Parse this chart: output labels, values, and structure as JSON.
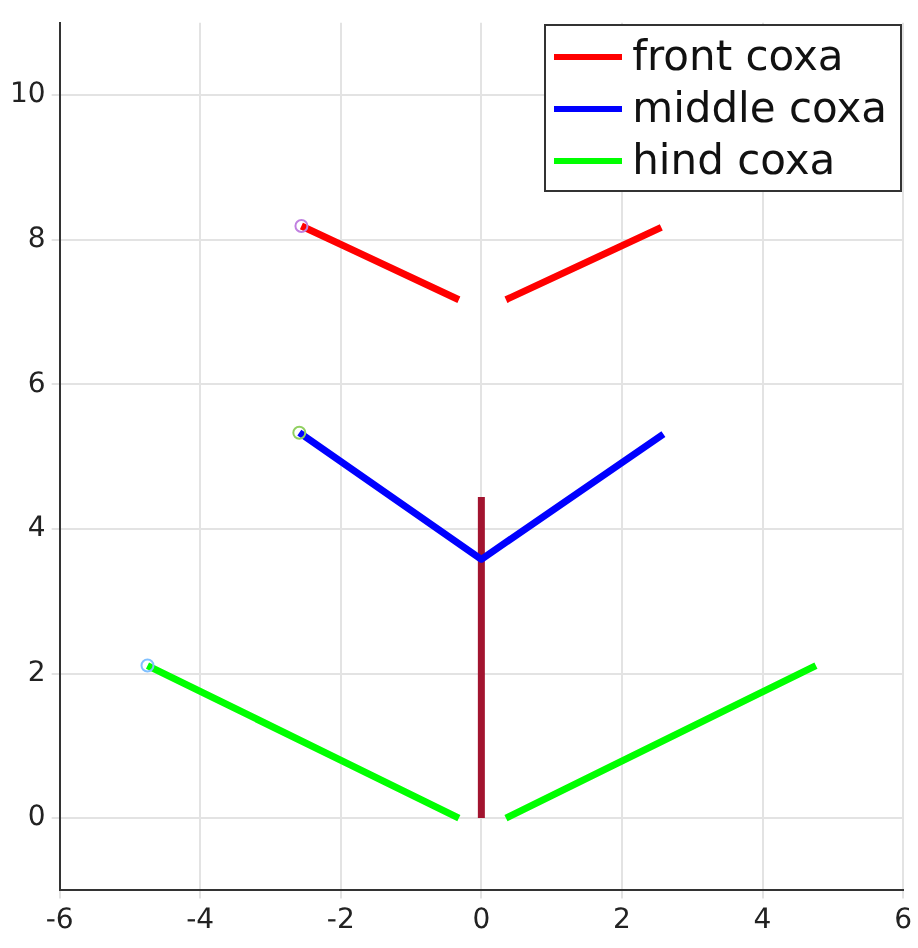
{
  "chart_data": {
    "type": "line",
    "xlim": [
      -6,
      6
    ],
    "ylim": [
      -1,
      11
    ],
    "xticks": [
      -6,
      -4,
      -2,
      0,
      2,
      4,
      6
    ],
    "yticks": [
      0,
      2,
      4,
      6,
      8,
      10
    ],
    "grid": true,
    "legend": "top right",
    "marker": "none",
    "line_style": "solid",
    "series": [
      {
        "name": "front coxa",
        "color": "#ff0000",
        "x": [
          -2.56,
          -0.32,
          0,
          0.35,
          2.56
        ],
        "values": [
          8.19,
          7.17,
          null,
          7.17,
          8.17
        ]
      },
      {
        "name": "middle coxa",
        "color": "#0000ff",
        "x": [
          -2.59,
          0,
          2.59
        ],
        "values": [
          5.33,
          3.58,
          5.31
        ]
      },
      {
        "name": "hind coxa",
        "color": "#00ff00",
        "x": [
          -4.75,
          -0.32,
          0,
          0.35,
          4.76
        ],
        "values": [
          2.11,
          0,
          null,
          0,
          2.11
        ]
      },
      {
        "color": "#a2142f",
        "x": [
          0,
          0
        ],
        "values": [
          0,
          4.44
        ]
      },
      {
        "type": "scatter",
        "marker": "circle",
        "color": "#c080e0",
        "x": [
          -2.56
        ],
        "values": [
          8.19
        ]
      },
      {
        "type": "scatter",
        "marker": "circle",
        "color": "#90d060",
        "x": [
          -2.59
        ],
        "values": [
          5.33
        ]
      },
      {
        "type": "scatter",
        "marker": "circle",
        "color": "#80c0ff",
        "x": [
          -4.75
        ],
        "values": [
          2.11
        ]
      }
    ]
  }
}
